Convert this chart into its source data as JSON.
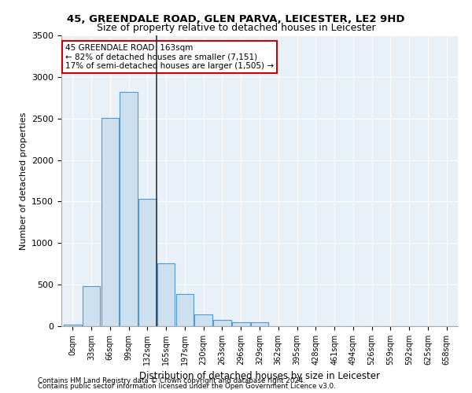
{
  "title1": "45, GREENDALE ROAD, GLEN PARVA, LEICESTER, LE2 9HD",
  "title2": "Size of property relative to detached houses in Leicester",
  "xlabel": "Distribution of detached houses by size in Leicester",
  "ylabel": "Number of detached properties",
  "bin_labels": [
    "0sqm",
    "33sqm",
    "66sqm",
    "99sqm",
    "132sqm",
    "165sqm",
    "197sqm",
    "230sqm",
    "263sqm",
    "296sqm",
    "329sqm",
    "362sqm",
    "395sqm",
    "428sqm",
    "461sqm",
    "494sqm",
    "526sqm",
    "559sqm",
    "592sqm",
    "625sqm",
    "658sqm"
  ],
  "bar_values": [
    20,
    480,
    2510,
    2820,
    1530,
    760,
    390,
    140,
    75,
    50,
    50,
    0,
    0,
    0,
    0,
    0,
    0,
    0,
    0,
    0,
    0
  ],
  "bar_color": "#cce0f0",
  "bar_edge_color": "#5599cc",
  "highlight_bin": 4,
  "highlight_line_color": "#333333",
  "annotation_title": "45 GREENDALE ROAD: 163sqm",
  "annotation_line1": "← 82% of detached houses are smaller (7,151)",
  "annotation_line2": "17% of semi-detached houses are larger (1,505) →",
  "annotation_box_color": "#ffffff",
  "annotation_box_edge_color": "#cc0000",
  "ylim": [
    0,
    3500
  ],
  "yticks": [
    0,
    500,
    1000,
    1500,
    2000,
    2500,
    3000,
    3500
  ],
  "bg_color": "#e8f0f8",
  "footer1": "Contains HM Land Registry data © Crown copyright and database right 2024.",
  "footer2": "Contains public sector information licensed under the Open Government Licence v3.0."
}
